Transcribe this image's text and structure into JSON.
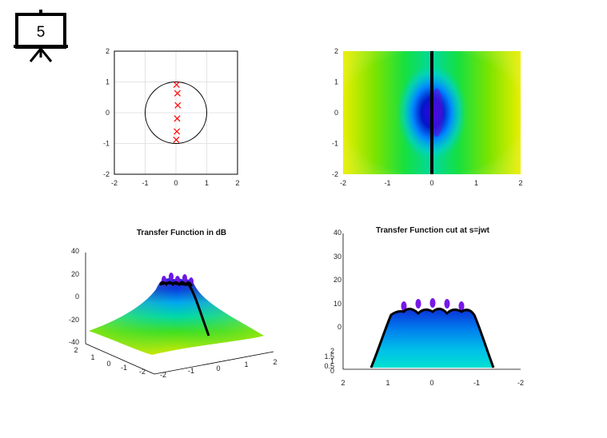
{
  "slide_badge": {
    "number": "5",
    "icon": "presentation-board-icon"
  },
  "chart_data": [
    {
      "type": "scatter",
      "panel": "pole-plot",
      "title": "",
      "xlim": [
        -2,
        2
      ],
      "ylim": [
        -2,
        2
      ],
      "xticks": [
        "-2",
        "-1",
        "0",
        "1",
        "2"
      ],
      "yticks": [
        "-2",
        "-1",
        "0",
        "1",
        "2"
      ],
      "grid": true,
      "unit_circle": {
        "cx": 0,
        "cy": 0,
        "r": 1
      },
      "series": [
        {
          "marker": "x",
          "color": "#ff0000",
          "x": [
            0.02,
            0.05,
            0.06,
            0.04,
            0.03,
            0.01
          ],
          "y": [
            0.91,
            0.63,
            0.24,
            -0.19,
            -0.61,
            -0.88
          ]
        }
      ]
    },
    {
      "type": "heatmap",
      "panel": "magnitude-map",
      "title": "",
      "xlim": [
        -2,
        2
      ],
      "ylim": [
        -2,
        2
      ],
      "xticks": [
        "-2",
        "-1",
        "0",
        "1",
        "2"
      ],
      "yticks": [
        "-2",
        "-1",
        "0",
        "1",
        "2"
      ],
      "cut_line_x": 0
    },
    {
      "type": "surface",
      "panel": "surface-3d",
      "title": "Transfer Function in dB",
      "zticks": [
        "40",
        "20",
        "0",
        "-20",
        "-40"
      ],
      "xticks": [
        "-2",
        "-1",
        "0",
        "1",
        "2"
      ],
      "yticks": [
        "2",
        "1",
        "0",
        "-1",
        "-2"
      ]
    },
    {
      "type": "surface",
      "panel": "cut-3d",
      "title": "Transfer Function cut at s=jwt",
      "zticks": [
        "40",
        "30",
        "20",
        "10",
        "0"
      ],
      "yticks": [
        "2",
        "1.5",
        "1",
        "0.5",
        "0"
      ],
      "xticks": [
        "2",
        "1",
        "0",
        "-1",
        "-2"
      ]
    }
  ]
}
